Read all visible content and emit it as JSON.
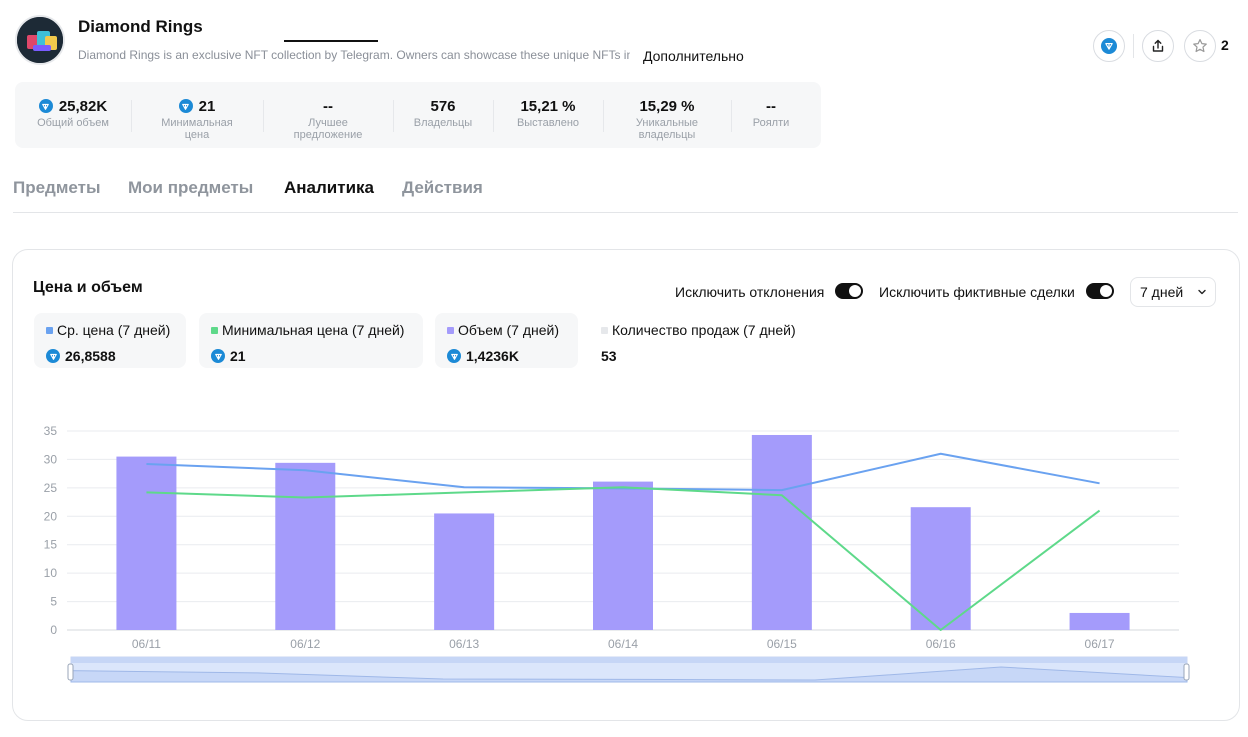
{
  "collection": {
    "title": "Diamond Rings",
    "description": "Diamond Rings is an exclusive NFT collection by Telegram. Owners can showcase these unique NFTs in their Telegram profiles",
    "more_label": "Дополнительно",
    "favorites_count": "2"
  },
  "stats": [
    {
      "value": "25,82K",
      "label": "Общий объем",
      "ton": true
    },
    {
      "value": "21",
      "label": "Минимальная цена",
      "ton": true
    },
    {
      "value": "--",
      "label": "Лучшее предложение",
      "ton": false
    },
    {
      "value": "576",
      "label": "Владельцы",
      "ton": false
    },
    {
      "value": "15,21 %",
      "label": "Выставлено",
      "ton": false
    },
    {
      "value": "15,29 %",
      "label": "Уникальные владельцы",
      "ton": false
    },
    {
      "value": "--",
      "label": "Роялти",
      "ton": false
    }
  ],
  "tabs": [
    "Предметы",
    "Мои предметы",
    "Аналитика",
    "Действия"
  ],
  "active_tab": "Аналитика",
  "analytics": {
    "title": "Цена и объем",
    "toggle_outliers": "Исключить отклонения",
    "toggle_wash": "Исключить фиктивные сделки",
    "period": "7 дней",
    "legend": [
      {
        "name": "Ср. цена (7 дней)",
        "value": "26,8588",
        "color": "#6aa2f0",
        "ton": true
      },
      {
        "name": "Минимальная цена (7 дней)",
        "value": "21",
        "color": "#5ed98a",
        "ton": true
      },
      {
        "name": "Объем (7 дней)",
        "value": "1,4236K",
        "color": "#a49bfb",
        "ton": true
      },
      {
        "name": "Количество продаж (7 дней)",
        "value": "53",
        "color": "#e6e8eb",
        "ton": false
      }
    ]
  },
  "chart_data": {
    "type": "bar",
    "categories": [
      "06/11",
      "06/12",
      "06/13",
      "06/14",
      "06/15",
      "06/16",
      "06/17"
    ],
    "ylim": [
      0,
      35
    ],
    "yticks": [
      0,
      5,
      10,
      15,
      20,
      25,
      30,
      35
    ],
    "grid": true,
    "series": [
      {
        "type": "bar",
        "color": "#a49bfb",
        "values": [
          30.5,
          29.4,
          20.5,
          26.1,
          34.3,
          21.6,
          3.0
        ]
      },
      {
        "type": "line",
        "color": "#6aa2f0",
        "values": [
          29.2,
          28.1,
          25.1,
          24.9,
          24.6,
          31.0,
          25.8
        ]
      },
      {
        "type": "line",
        "color": "#5ed98a",
        "values": [
          24.2,
          23.3,
          24.2,
          25.1,
          23.7,
          0.0,
          21.0
        ]
      }
    ]
  }
}
